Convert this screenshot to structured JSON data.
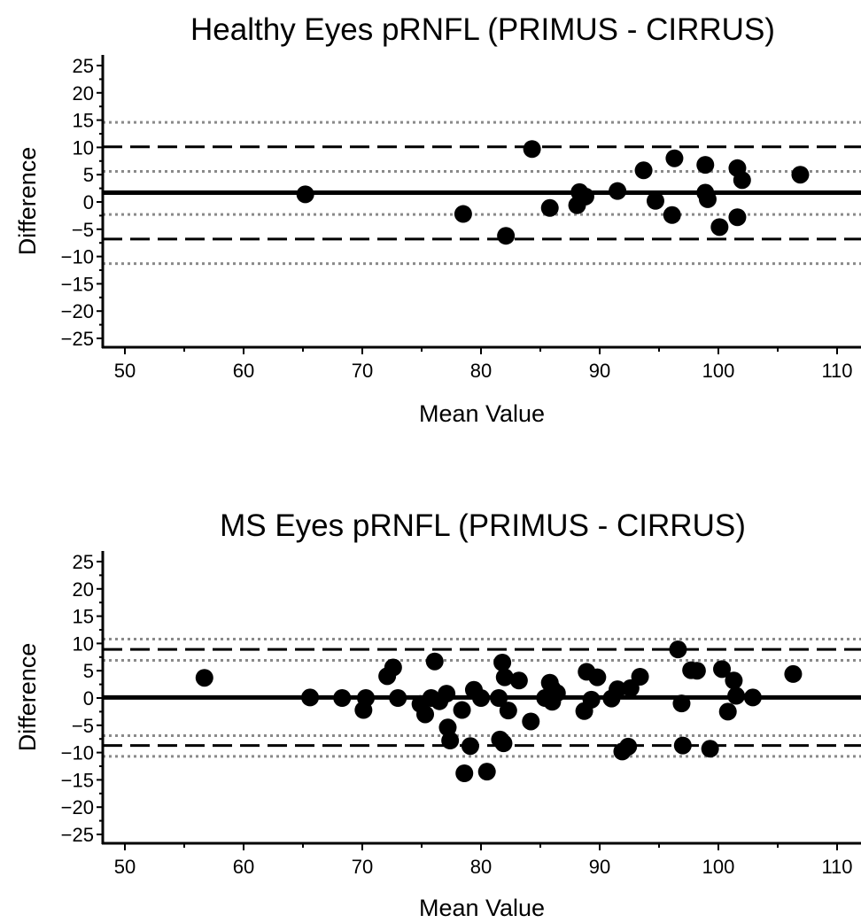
{
  "chart_data": [
    {
      "type": "scatter",
      "title": "Healthy Eyes pRNFL (PRIMUS - CIRRUS)",
      "xlabel": "Mean Value",
      "ylabel": "Difference",
      "xlim": [
        48,
        112
      ],
      "ylim": [
        -27,
        27
      ],
      "xticks": [
        50,
        60,
        70,
        80,
        90,
        100,
        110
      ],
      "yticks": [
        25,
        20,
        15,
        10,
        5,
        0,
        -5,
        -10,
        -15,
        -20,
        -25
      ],
      "ytick_labels": [
        "25",
        "20",
        "15",
        "10",
        "5",
        "0",
        "−5",
        "−10",
        "−15",
        "−20",
        "−25"
      ],
      "mean_difference": 1.7,
      "limits_of_agreement": [
        10.1,
        -6.8
      ],
      "confidence_bands": [
        14.6,
        5.6,
        -2.3,
        -11.3
      ],
      "points": [
        {
          "x": 65.2,
          "y": 1.4
        },
        {
          "x": 78.5,
          "y": -2.2
        },
        {
          "x": 82.1,
          "y": -6.2
        },
        {
          "x": 84.3,
          "y": 9.7
        },
        {
          "x": 85.8,
          "y": -1.1
        },
        {
          "x": 88.1,
          "y": -0.6
        },
        {
          "x": 88.3,
          "y": 1.8
        },
        {
          "x": 88.8,
          "y": 1.0
        },
        {
          "x": 91.5,
          "y": 2.0
        },
        {
          "x": 93.7,
          "y": 5.8
        },
        {
          "x": 94.7,
          "y": 0.2
        },
        {
          "x": 96.1,
          "y": -2.4
        },
        {
          "x": 96.3,
          "y": 8.0
        },
        {
          "x": 98.9,
          "y": 6.8
        },
        {
          "x": 98.9,
          "y": 1.7
        },
        {
          "x": 99.1,
          "y": 0.5
        },
        {
          "x": 100.1,
          "y": -4.6
        },
        {
          "x": 101.6,
          "y": 6.2
        },
        {
          "x": 101.6,
          "y": -2.8
        },
        {
          "x": 102.0,
          "y": 4.0
        },
        {
          "x": 106.9,
          "y": 5.0
        }
      ]
    },
    {
      "type": "scatter",
      "title": "MS Eyes pRNFL (PRIMUS - CIRRUS)",
      "xlabel": "Mean Value",
      "ylabel": "Difference",
      "xlim": [
        48,
        112
      ],
      "ylim": [
        -27,
        27
      ],
      "xticks": [
        50,
        60,
        70,
        80,
        90,
        100,
        110
      ],
      "yticks": [
        25,
        20,
        15,
        10,
        5,
        0,
        -5,
        -10,
        -15,
        -20,
        -25
      ],
      "ytick_labels": [
        "25",
        "20",
        "15",
        "10",
        "5",
        "0",
        "−5",
        "−10",
        "−15",
        "−20",
        "−25"
      ],
      "mean_difference": 0.1,
      "limits_of_agreement": [
        8.9,
        -8.7
      ],
      "confidence_bands": [
        10.8,
        6.9,
        -6.9,
        -10.7
      ],
      "points": [
        {
          "x": 56.7,
          "y": 3.7
        },
        {
          "x": 65.6,
          "y": 0.1
        },
        {
          "x": 68.3,
          "y": 0.0
        },
        {
          "x": 70.1,
          "y": -2.2
        },
        {
          "x": 70.3,
          "y": 0.0
        },
        {
          "x": 72.1,
          "y": 4.0
        },
        {
          "x": 72.6,
          "y": 5.6
        },
        {
          "x": 73.0,
          "y": 0.0
        },
        {
          "x": 74.9,
          "y": -1.1
        },
        {
          "x": 75.3,
          "y": -3.0
        },
        {
          "x": 75.8,
          "y": 0.0
        },
        {
          "x": 76.1,
          "y": 6.7
        },
        {
          "x": 76.5,
          "y": -0.6
        },
        {
          "x": 77.1,
          "y": 0.8
        },
        {
          "x": 77.2,
          "y": -5.4
        },
        {
          "x": 77.4,
          "y": -7.8
        },
        {
          "x": 78.4,
          "y": -2.2
        },
        {
          "x": 78.6,
          "y": -13.8
        },
        {
          "x": 79.1,
          "y": -8.8
        },
        {
          "x": 79.4,
          "y": 1.5
        },
        {
          "x": 80.0,
          "y": 0.0
        },
        {
          "x": 80.5,
          "y": -13.5
        },
        {
          "x": 81.5,
          "y": 0.0
        },
        {
          "x": 81.6,
          "y": -7.6
        },
        {
          "x": 81.8,
          "y": 6.5
        },
        {
          "x": 81.9,
          "y": -8.3
        },
        {
          "x": 82.0,
          "y": 3.8
        },
        {
          "x": 82.3,
          "y": -2.3
        },
        {
          "x": 83.2,
          "y": 3.2
        },
        {
          "x": 84.2,
          "y": -4.3
        },
        {
          "x": 85.4,
          "y": 0.0
        },
        {
          "x": 85.8,
          "y": 2.8
        },
        {
          "x": 86.0,
          "y": 1.7
        },
        {
          "x": 86.0,
          "y": -0.7
        },
        {
          "x": 86.4,
          "y": 0.9
        },
        {
          "x": 88.7,
          "y": -2.4
        },
        {
          "x": 88.9,
          "y": 4.8
        },
        {
          "x": 89.3,
          "y": -0.3
        },
        {
          "x": 89.8,
          "y": 3.8
        },
        {
          "x": 91.0,
          "y": -0.1
        },
        {
          "x": 91.5,
          "y": 1.6
        },
        {
          "x": 91.9,
          "y": -9.8
        },
        {
          "x": 92.4,
          "y": -8.9
        },
        {
          "x": 92.6,
          "y": 1.8
        },
        {
          "x": 93.4,
          "y": 3.9
        },
        {
          "x": 96.6,
          "y": 8.9
        },
        {
          "x": 96.9,
          "y": -1.0
        },
        {
          "x": 97.0,
          "y": -8.7
        },
        {
          "x": 97.7,
          "y": 5.1
        },
        {
          "x": 98.2,
          "y": 5.0
        },
        {
          "x": 99.3,
          "y": -9.3
        },
        {
          "x": 100.3,
          "y": 5.3
        },
        {
          "x": 100.8,
          "y": -2.5
        },
        {
          "x": 101.3,
          "y": 3.2
        },
        {
          "x": 101.5,
          "y": 0.4
        },
        {
          "x": 102.9,
          "y": 0.1
        },
        {
          "x": 106.3,
          "y": 4.4
        }
      ]
    }
  ]
}
